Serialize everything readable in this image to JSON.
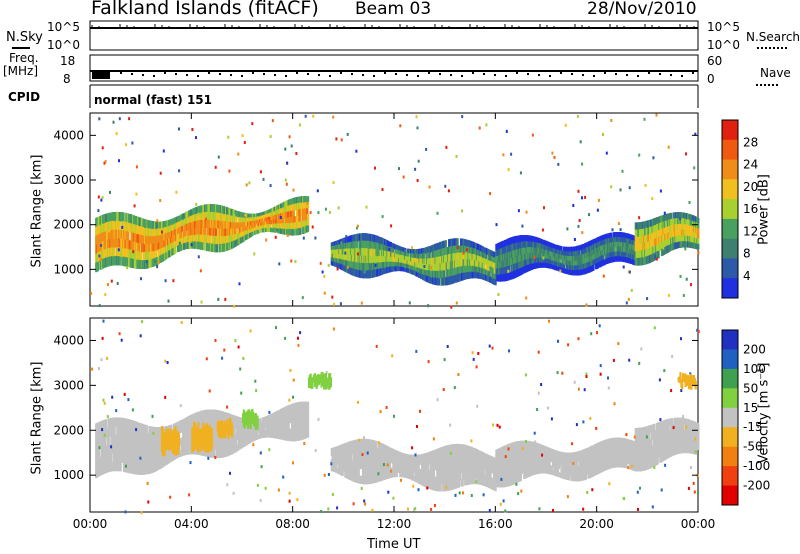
{
  "header": {
    "station": "Falkland Islands (fitACF)",
    "beam": "Beam 03",
    "date": "28/Nov/2010"
  },
  "panels": {
    "nsky": {
      "label": "N.Sky",
      "left_ticks": [
        "10^5",
        "10^0"
      ],
      "right_ticks": [
        "10^5",
        "10^0"
      ],
      "right_label": "N.Search"
    },
    "freq": {
      "label_line1": "Freq.",
      "label_line2": "[MHz]",
      "left_ticks": [
        "18",
        "8"
      ],
      "right_ticks": [
        "60",
        "0"
      ],
      "right_label": "Nave"
    },
    "cpid": {
      "label": "CPID",
      "value": "normal (fast) 151"
    }
  },
  "colors": {
    "ground_scatter": "#c2c2c2",
    "power_scale": [
      "#2030e0",
      "#2c5aa8",
      "#3d8070",
      "#4aa060",
      "#a8d030",
      "#f0c020",
      "#f08c18",
      "#f05a10",
      "#e02010"
    ],
    "velocity_scale": [
      "#2030c0",
      "#2060c0",
      "#40a050",
      "#80d040",
      "#c2c2c2",
      "#f0b020",
      "#f08010",
      "#f04010",
      "#e00000"
    ]
  },
  "chart_data": [
    {
      "type": "heatmap",
      "title": "Power",
      "ylabel": "Slant Range [km]",
      "xlabel": "Time UT",
      "x_ticks": [
        "00:00",
        "04:00",
        "08:00",
        "12:00",
        "16:00",
        "20:00",
        "00:00"
      ],
      "y_ticks": [
        1000,
        2000,
        3000,
        4000
      ],
      "ylim": [
        180,
        4500
      ],
      "xlim_hours": [
        0,
        24
      ],
      "colorbar_label": "Power [dB]",
      "colorbar_ticks": [
        4,
        8,
        12,
        16,
        20,
        24,
        28
      ],
      "bands": [
        {
          "t": [
            0.2,
            8.6
          ],
          "r_low": [
            900,
            1950
          ],
          "r_high": [
            2100,
            2500
          ],
          "level": 26
        },
        {
          "t": [
            9.5,
            16.0
          ],
          "r_low": [
            1000,
            650
          ],
          "r_high": [
            1700,
            1500
          ],
          "level": 18
        },
        {
          "t": [
            16.0,
            21.5
          ],
          "r_low": [
            850,
            1100
          ],
          "r_high": [
            1600,
            1700
          ],
          "level": 12
        },
        {
          "t": [
            21.5,
            24.0
          ],
          "r_low": [
            1200,
            1450
          ],
          "r_high": [
            2200,
            2100
          ],
          "level": 22
        }
      ]
    },
    {
      "type": "heatmap",
      "title": "Velocity",
      "ylabel": "Slant Range [km]",
      "xlabel": "Time UT",
      "x_ticks": [
        "00:00",
        "04:00",
        "08:00",
        "12:00",
        "16:00",
        "20:00",
        "00:00"
      ],
      "y_ticks": [
        1000,
        2000,
        3000,
        4000
      ],
      "ylim": [
        180,
        4500
      ],
      "xlim_hours": [
        0,
        24
      ],
      "colorbar_label": "Velocity [m s⁻¹]",
      "colorbar_ticks": [
        200,
        100,
        50,
        15,
        -15,
        -50,
        -100,
        -200
      ],
      "ground_scatter_bands": [
        {
          "t": [
            0.2,
            8.6
          ],
          "r_low": [
            900,
            1950
          ],
          "r_high": [
            2100,
            2500
          ]
        },
        {
          "t": [
            9.5,
            16.0
          ],
          "r_low": [
            1000,
            650
          ],
          "r_high": [
            1700,
            1500
          ]
        },
        {
          "t": [
            16.0,
            21.5
          ],
          "r_low": [
            850,
            1100
          ],
          "r_high": [
            1600,
            1700
          ]
        },
        {
          "t": [
            21.5,
            24.0
          ],
          "r_low": [
            1200,
            1450
          ],
          "r_high": [
            2200,
            2100
          ]
        }
      ],
      "patches": [
        {
          "t": [
            2.8,
            3.5
          ],
          "r": [
            1400,
            2100
          ],
          "velocity": -50
        },
        {
          "t": [
            4.0,
            4.8
          ],
          "r": [
            1500,
            2200
          ],
          "velocity": -50
        },
        {
          "t": [
            5.0,
            5.6
          ],
          "r": [
            1800,
            2300
          ],
          "velocity": -50
        },
        {
          "t": [
            6.0,
            6.6
          ],
          "r": [
            2000,
            2500
          ],
          "velocity": 50
        },
        {
          "t": [
            8.6,
            9.5
          ],
          "r": [
            2900,
            3300
          ],
          "velocity": 50
        },
        {
          "t": [
            23.2,
            23.9
          ],
          "r": [
            2900,
            3300
          ],
          "velocity": -50
        }
      ]
    }
  ]
}
